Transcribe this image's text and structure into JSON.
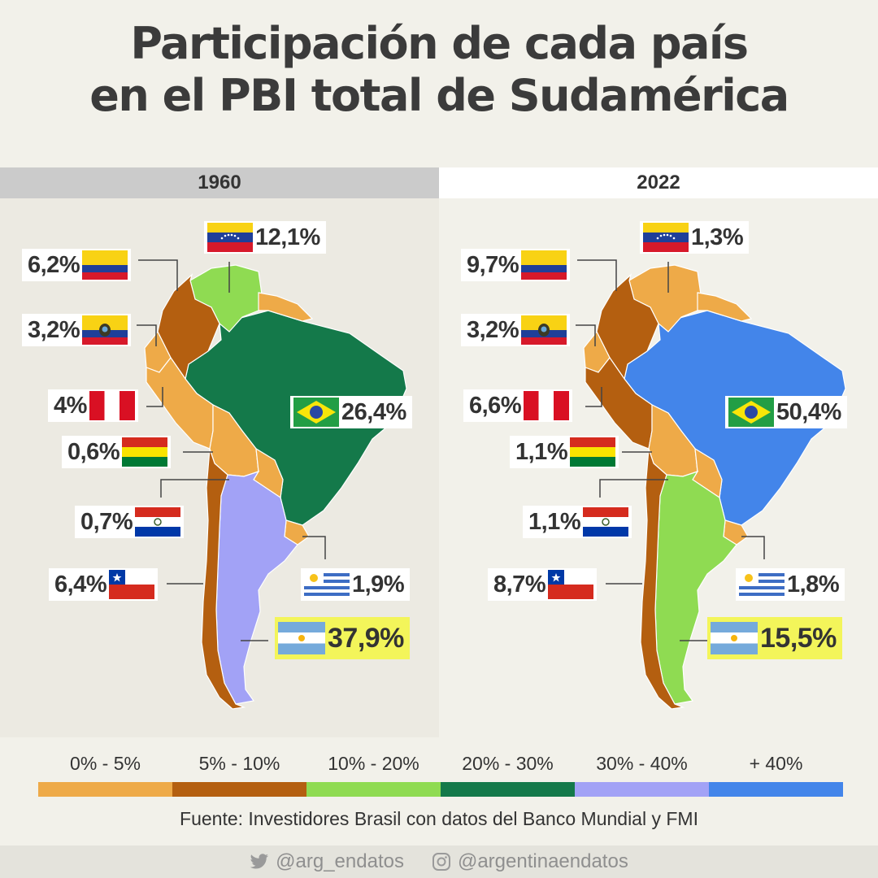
{
  "title": {
    "line1": "Participación de cada país",
    "line2": "en el PBI total de Sudamérica"
  },
  "panels": [
    {
      "year": "1960",
      "labels": {
        "colombia": "6,2%",
        "venezuela": "12,1%",
        "ecuador": "3,2%",
        "peru": "4%",
        "brazil": "26,4%",
        "bolivia": "0,6%",
        "paraguay": "0,7%",
        "chile": "6,4%",
        "uruguay": "1,9%",
        "argentina": "37,9%"
      }
    },
    {
      "year": "2022",
      "labels": {
        "colombia": "9,7%",
        "venezuela": "1,3%",
        "ecuador": "3,2%",
        "peru": "6,6%",
        "brazil": "50,4%",
        "bolivia": "1,1%",
        "paraguay": "1,1%",
        "chile": "8,7%",
        "uruguay": "1,8%",
        "argentina": "15,5%"
      }
    }
  ],
  "legend": [
    {
      "label": "0% - 5%",
      "color": "#eeaa48"
    },
    {
      "label": "5% - 10%",
      "color": "#b45f10"
    },
    {
      "label": "10% - 20%",
      "color": "#8fdb52"
    },
    {
      "label": "20% - 30%",
      "color": "#14794a"
    },
    {
      "label": "30% - 40%",
      "color": "#a2a2f6"
    },
    {
      "label": "+ 40%",
      "color": "#4385ea"
    }
  ],
  "source": "Fuente: Investidores Brasil con datos del Banco Mundial y FMI",
  "footer": {
    "twitter": "@arg_endatos",
    "instagram": "@argentinaendatos",
    "twitter_icon": "twitter-bird-icon",
    "instagram_icon": "instagram-icon"
  }
}
